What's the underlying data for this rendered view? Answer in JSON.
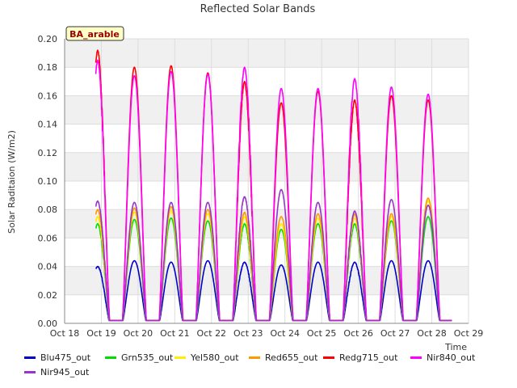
{
  "chart_data": {
    "type": "line",
    "title": "Reflected Solar Bands",
    "xlabel": "Time",
    "ylabel": "Solar Raditaion (W/m2)",
    "annotation": "BA_arable",
    "xlim": [
      0,
      11
    ],
    "ylim": [
      0,
      0.2
    ],
    "x_ticks": [
      0,
      1,
      2,
      3,
      4,
      5,
      6,
      7,
      8,
      9,
      10,
      11
    ],
    "x_tick_labels": [
      "Oct 18",
      "Oct 19",
      "Oct 20",
      "Oct 21",
      "Oct 22",
      "Oct 23",
      "Oct 24",
      "Oct 25",
      "Oct 26",
      "Oct 27",
      "Oct 28",
      "Oct 29"
    ],
    "y_ticks": [
      0,
      0.02,
      0.04,
      0.06,
      0.08,
      0.1,
      0.12,
      0.14,
      0.16,
      0.18,
      0.2
    ],
    "y_tick_labels": [
      "0.00",
      "0.02",
      "0.04",
      "0.06",
      "0.08",
      "0.10",
      "0.12",
      "0.14",
      "0.16",
      "0.18",
      "0.20"
    ],
    "grid": true,
    "legend_position": "bottom",
    "data_start": 0.85,
    "data_end": 10.55,
    "day_peaks_x": [
      0.9,
      1.9,
      2.9,
      3.9,
      4.9,
      5.9,
      6.9,
      7.9,
      8.9,
      9.9
    ],
    "daytime_half_width": 0.33,
    "night_value": 0.002,
    "series": [
      {
        "name": "Blu475_out",
        "color": "#0000cc",
        "peaks": [
          0.04,
          0.044,
          0.043,
          0.044,
          0.043,
          0.041,
          0.043,
          0.043,
          0.044,
          0.044
        ]
      },
      {
        "name": "Grn535_out",
        "color": "#00dd00",
        "peaks": [
          0.07,
          0.073,
          0.074,
          0.072,
          0.07,
          0.066,
          0.07,
          0.07,
          0.072,
          0.075
        ]
      },
      {
        "name": "Yel580_out",
        "color": "#ffee00",
        "peaks": [
          0.075,
          0.078,
          0.079,
          0.077,
          0.075,
          0.07,
          0.074,
          0.074,
          0.075,
          0.086
        ]
      },
      {
        "name": "Red655_out",
        "color": "#ff9900",
        "peaks": [
          0.08,
          0.081,
          0.082,
          0.08,
          0.078,
          0.075,
          0.077,
          0.077,
          0.077,
          0.088
        ]
      },
      {
        "name": "Redg715_out",
        "color": "#ff0000",
        "peaks": [
          0.192,
          0.18,
          0.181,
          0.176,
          0.17,
          0.155,
          0.163,
          0.157,
          0.16,
          0.157
        ]
      },
      {
        "name": "Nir840_out",
        "color": "#ff00ff",
        "peaks": [
          0.185,
          0.174,
          0.177,
          0.175,
          0.18,
          0.165,
          0.165,
          0.172,
          0.166,
          0.161
        ]
      },
      {
        "name": "Nir945_out",
        "color": "#9933cc",
        "peaks": [
          0.086,
          0.085,
          0.085,
          0.085,
          0.089,
          0.094,
          0.085,
          0.079,
          0.087,
          0.083
        ]
      }
    ]
  }
}
